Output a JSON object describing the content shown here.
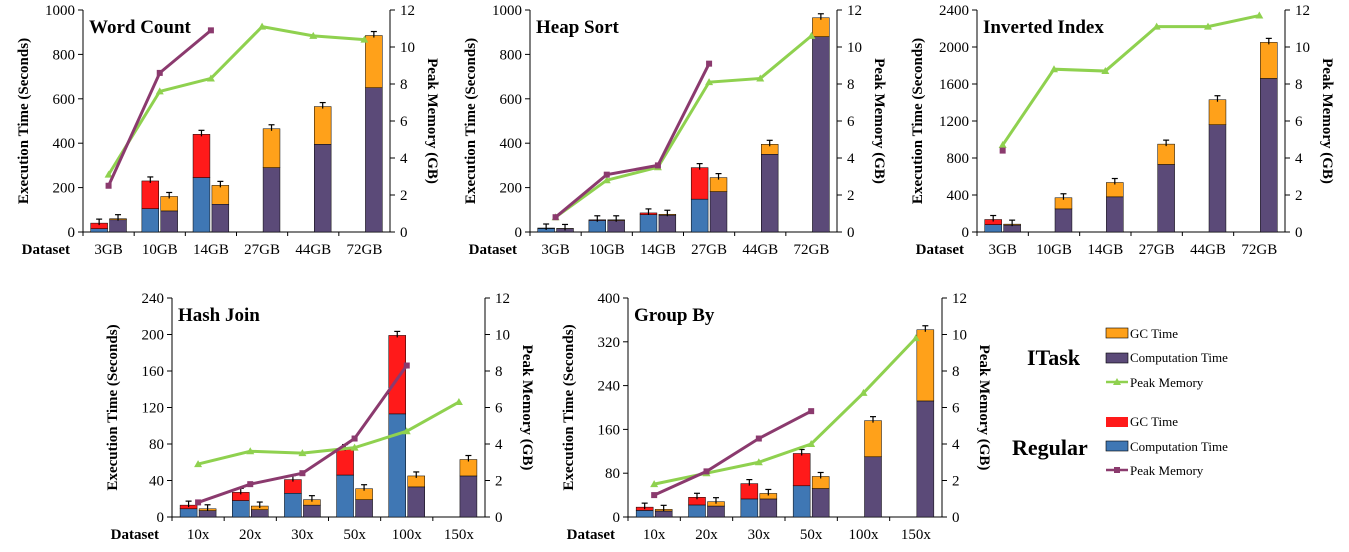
{
  "colors": {
    "itask_gc": "#FFA11A",
    "itask_comp": "#5B4A78",
    "itask_mem": "#8FD14F",
    "regular_gc": "#FF1A1A",
    "regular_comp": "#3F77B4",
    "regular_mem": "#8B3A6E"
  },
  "legend": {
    "itask_label": "ITask",
    "regular_label": "Regular",
    "itask_items": [
      "GC Time",
      "Computation Time",
      "Peak Memory"
    ],
    "regular_items": [
      "GC Time",
      "Computation Time",
      "Peak Memory"
    ]
  },
  "chart_data": [
    {
      "type": "bar",
      "title": "Word Count",
      "xlabel": "Dataset",
      "ylabel": "Execution Time (Seconds)",
      "y2label": "Peak Memory (GB)",
      "categories": [
        "3GB",
        "10GB",
        "14GB",
        "27GB",
        "44GB",
        "72GB"
      ],
      "ylim": [
        0,
        1000
      ],
      "yticks": [
        0,
        200,
        400,
        600,
        800,
        1000
      ],
      "y2lim": [
        0,
        12
      ],
      "y2ticks": [
        0,
        2,
        4,
        6,
        8,
        10,
        12
      ],
      "regular": {
        "comp": [
          15,
          105,
          245,
          null,
          null,
          null
        ],
        "gc": [
          25,
          125,
          195,
          null,
          null,
          null
        ],
        "mem": [
          2.5,
          8.6,
          10.9,
          null,
          null,
          null
        ]
      },
      "itask": {
        "comp": [
          55,
          95,
          125,
          290,
          395,
          650
        ],
        "gc": [
          5,
          65,
          85,
          175,
          170,
          235
        ],
        "mem": [
          3.1,
          7.6,
          8.3,
          11.1,
          10.6,
          10.4
        ]
      }
    },
    {
      "type": "bar",
      "title": "Heap Sort",
      "xlabel": "Dataset",
      "ylabel": "Execution Time (Seconds)",
      "y2label": "Peak Memory (GB)",
      "categories": [
        "3GB",
        "10GB",
        "14GB",
        "27GB",
        "44GB",
        "72GB"
      ],
      "ylim": [
        0,
        1000
      ],
      "yticks": [
        0,
        200,
        400,
        600,
        800,
        1000
      ],
      "y2lim": [
        0,
        12
      ],
      "y2ticks": [
        0,
        2,
        4,
        6,
        8,
        10,
        12
      ],
      "regular": {
        "comp": [
          16,
          52,
          78,
          148,
          null,
          null
        ],
        "gc": [
          2,
          3,
          8,
          142,
          null,
          null
        ],
        "mem": [
          0.8,
          3.1,
          3.6,
          9.1,
          null,
          null
        ]
      },
      "itask": {
        "comp": [
          15,
          52,
          76,
          182,
          350,
          880
        ],
        "gc": [
          1,
          3,
          4,
          63,
          45,
          85
        ],
        "mem": [
          0.8,
          2.8,
          3.5,
          8.1,
          8.3,
          10.6
        ]
      }
    },
    {
      "type": "bar",
      "title": "Inverted Index",
      "xlabel": "Dataset",
      "ylabel": "Execution Time (Seconds)",
      "y2label": "Peak Memory (GB)",
      "categories": [
        "3GB",
        "10GB",
        "14GB",
        "27GB",
        "44GB",
        "72GB"
      ],
      "ylim": [
        0,
        2400
      ],
      "yticks": [
        0,
        400,
        800,
        1200,
        1600,
        2000,
        2400
      ],
      "y2lim": [
        0,
        12
      ],
      "y2ticks": [
        0,
        2,
        4,
        6,
        8,
        10,
        12
      ],
      "regular": {
        "comp": [
          80,
          null,
          null,
          null,
          null,
          null
        ],
        "gc": [
          55,
          null,
          null,
          null,
          null,
          null
        ],
        "mem": [
          4.4,
          null,
          null,
          null,
          null,
          null
        ]
      },
      "itask": {
        "comp": [
          75,
          250,
          380,
          730,
          1160,
          1660
        ],
        "gc": [
          10,
          120,
          155,
          220,
          270,
          390
        ],
        "mem": [
          4.7,
          8.8,
          8.7,
          11.1,
          11.1,
          11.7
        ]
      }
    },
    {
      "type": "bar",
      "title": "Hash Join",
      "xlabel": "Dataset",
      "ylabel": "Execution Time (Seconds)",
      "y2label": "Peak Memory (GB)",
      "categories": [
        "10x",
        "20x",
        "30x",
        "50x",
        "100x",
        "150x"
      ],
      "ylim": [
        0,
        240
      ],
      "yticks": [
        0,
        40,
        80,
        120,
        160,
        200,
        240
      ],
      "y2lim": [
        0,
        12
      ],
      "y2ticks": [
        0,
        2,
        4,
        6,
        8,
        10,
        12
      ],
      "regular": {
        "comp": [
          9,
          18,
          26,
          46,
          113,
          null
        ],
        "gc": [
          4,
          9,
          15,
          29,
          86,
          null
        ],
        "mem": [
          0.8,
          1.8,
          2.4,
          4.3,
          8.3,
          null
        ]
      },
      "itask": {
        "comp": [
          7,
          8,
          13,
          19,
          33,
          45
        ],
        "gc": [
          2,
          4,
          6,
          12,
          12,
          18
        ],
        "mem": [
          2.9,
          3.6,
          3.5,
          3.8,
          4.7,
          6.3
        ]
      }
    },
    {
      "type": "bar",
      "title": "Group By",
      "xlabel": "Dataset",
      "ylabel": "Execution Time (Seconds)",
      "y2label": "Peak Memory (GB)",
      "categories": [
        "10x",
        "20x",
        "30x",
        "50x",
        "100x",
        "150x"
      ],
      "ylim": [
        0,
        400
      ],
      "yticks": [
        0,
        80,
        160,
        240,
        320,
        400
      ],
      "y2lim": [
        0,
        12
      ],
      "y2ticks": [
        0,
        2,
        4,
        6,
        8,
        10,
        12
      ],
      "regular": {
        "comp": [
          12,
          22,
          33,
          57,
          null,
          null
        ],
        "gc": [
          6,
          14,
          28,
          59,
          null,
          null
        ],
        "mem": [
          1.2,
          2.5,
          4.3,
          5.8,
          null,
          null
        ]
      },
      "itask": {
        "comp": [
          11,
          20,
          33,
          52,
          110,
          212
        ],
        "gc": [
          3,
          8,
          10,
          22,
          66,
          130
        ],
        "mem": [
          1.8,
          2.4,
          3.0,
          4.0,
          6.8,
          9.8
        ]
      }
    }
  ]
}
